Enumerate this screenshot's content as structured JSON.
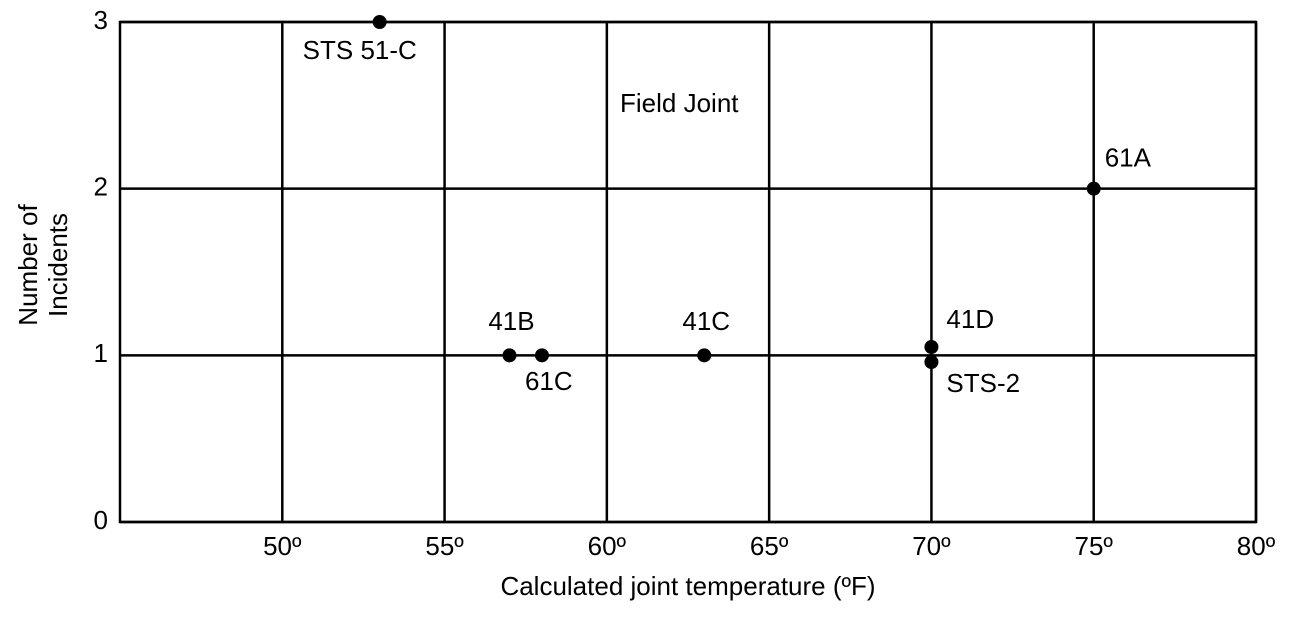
{
  "chart_data": {
    "type": "scatter",
    "xlabel": "Calculated joint temperature (ºF)",
    "ylabel": [
      "Number of",
      "Incidents"
    ],
    "annotation": "Field Joint",
    "x": [
      53,
      57,
      58,
      63,
      70,
      70,
      75
    ],
    "values": [
      3,
      1,
      1,
      1,
      1.05,
      0.96,
      2
    ],
    "point_labels": [
      "STS 51-C",
      "41B",
      "61C",
      "41C",
      "41D",
      "STS-2",
      "61A"
    ],
    "color": "#000000",
    "xlim": [
      45,
      80
    ],
    "ylim": [
      0,
      3
    ],
    "xticks": [
      {
        "value": 50,
        "label": "50º"
      },
      {
        "value": 55,
        "label": "55º"
      },
      {
        "value": 60,
        "label": "60º"
      },
      {
        "value": 65,
        "label": "65º"
      },
      {
        "value": 70,
        "label": "70º"
      },
      {
        "value": 75,
        "label": "75º"
      },
      {
        "value": 80,
        "label": "80º"
      }
    ],
    "yticks": [
      0,
      1,
      2,
      3
    ],
    "grid": true
  }
}
